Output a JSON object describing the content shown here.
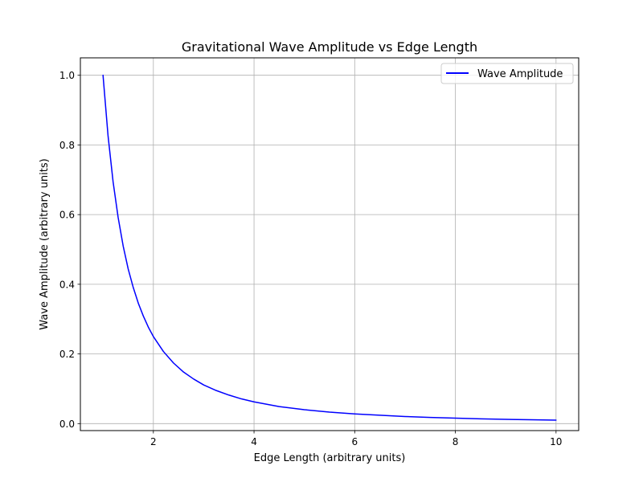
{
  "chart_data": {
    "type": "line",
    "title": "Gravitational Wave Amplitude vs Edge Length",
    "xlabel": "Edge Length (arbitrary units)",
    "ylabel": "Wave Amplitude (arbitrary units)",
    "xlim": [
      0.55,
      10.45
    ],
    "ylim": [
      -0.02,
      1.05
    ],
    "xticks": [
      2,
      4,
      6,
      8,
      10
    ],
    "xtick_labels": [
      "2",
      "4",
      "6",
      "8",
      "10"
    ],
    "yticks": [
      0.0,
      0.2,
      0.4,
      0.6,
      0.8,
      1.0
    ],
    "ytick_labels": [
      "0.0",
      "0.2",
      "0.4",
      "0.6",
      "0.8",
      "1.0"
    ],
    "grid": true,
    "legend": {
      "placement": "upper right",
      "entries": [
        "Wave Amplitude"
      ]
    },
    "series": [
      {
        "name": "Wave Amplitude",
        "color": "#0000ff",
        "x": [
          1.0,
          1.1,
          1.2,
          1.3,
          1.4,
          1.5,
          1.6,
          1.7,
          1.8,
          1.9,
          2.0,
          2.2,
          2.4,
          2.6,
          2.8,
          3.0,
          3.25,
          3.5,
          3.75,
          4.0,
          4.5,
          5.0,
          5.5,
          6.0,
          6.5,
          7.0,
          7.5,
          8.0,
          8.5,
          9.0,
          9.5,
          10.0
        ],
        "y": [
          1.0,
          0.826,
          0.694,
          0.592,
          0.51,
          0.444,
          0.391,
          0.346,
          0.309,
          0.277,
          0.25,
          0.207,
          0.174,
          0.148,
          0.128,
          0.111,
          0.095,
          0.082,
          0.071,
          0.0625,
          0.049,
          0.04,
          0.033,
          0.028,
          0.024,
          0.0204,
          0.0178,
          0.0156,
          0.0138,
          0.0123,
          0.0111,
          0.01
        ]
      }
    ]
  }
}
